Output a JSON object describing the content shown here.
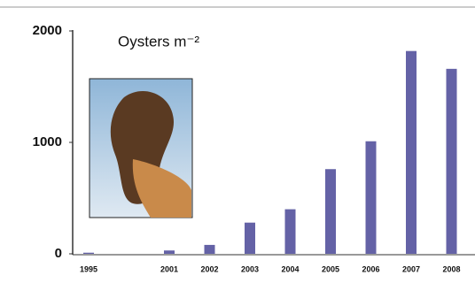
{
  "chart_data": {
    "type": "bar",
    "title": "Oysters m⁻²",
    "categories": [
      "1995",
      null,
      "2001",
      "2002",
      "2003",
      "2004",
      "2005",
      "2006",
      "2007",
      "2008"
    ],
    "values": [
      10,
      null,
      30,
      80,
      280,
      400,
      760,
      1010,
      1820,
      1660
    ],
    "color": "#6462a6",
    "ylim": [
      0,
      2000
    ],
    "yticks": [
      0,
      1000,
      2000
    ],
    "grid": false
  }
}
